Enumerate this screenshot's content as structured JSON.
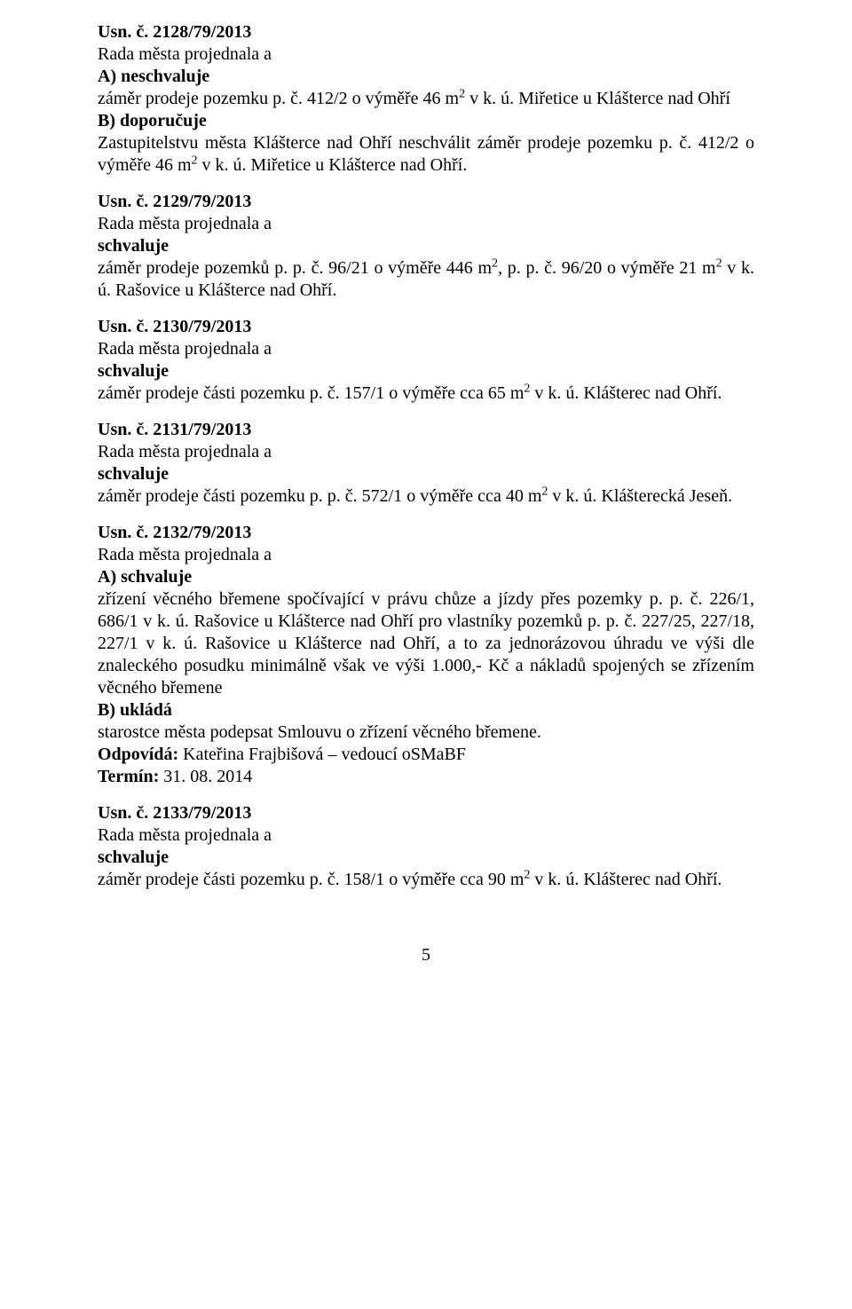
{
  "colors": {
    "text": "#000000",
    "background": "#ffffff"
  },
  "fonts": {
    "family": "Times New Roman",
    "body_size_pt": 15,
    "heading_weight": "bold"
  },
  "page_number": "5",
  "entries": [
    {
      "heading": "Usn. č. 2128/79/2013",
      "lines": [
        {
          "text": "Rada města projednala a"
        },
        {
          "text": "A) neschvaluje",
          "bold": true
        },
        {
          "html": "záměr prodeje pozemku p. č. 412/2 o výměře 46 m<sup>2</sup> v k. ú. Miřetice u Klášterce nad Ohří"
        },
        {
          "text": "B) doporučuje",
          "bold": true
        },
        {
          "html": "Zastupitelstvu města Klášterce nad Ohří neschválit záměr prodeje pozemku p. č. 412/2 o výměře 46 m<sup>2</sup> v k. ú. Miřetice u Klášterce nad Ohří.",
          "justify": true
        }
      ]
    },
    {
      "heading": "Usn. č. 2129/79/2013",
      "lines": [
        {
          "text": "Rada města projednala a"
        },
        {
          "text": "schvaluje",
          "bold": true
        },
        {
          "html": "záměr prodeje pozemků p. p. č. 96/21 o výměře 446 m<sup>2</sup>, p. p. č. 96/20 o výměře 21 m<sup>2</sup> v k. ú. Rašovice u Klášterce nad Ohří.",
          "justify": true
        }
      ]
    },
    {
      "heading": "Usn. č. 2130/79/2013",
      "lines": [
        {
          "text": "Rada města projednala a"
        },
        {
          "text": "schvaluje",
          "bold": true
        },
        {
          "html": "záměr prodeje části pozemku p. č. 157/1 o výměře cca 65 m<sup>2</sup> v k. ú. Klášterec nad Ohří."
        }
      ]
    },
    {
      "heading": "Usn. č. 2131/79/2013",
      "lines": [
        {
          "text": "Rada města projednala a"
        },
        {
          "text": "schvaluje",
          "bold": true
        },
        {
          "html": "záměr prodeje části pozemku p. p. č. 572/1 o výměře cca 40 m<sup>2</sup> v k. ú. Klášterecká Jeseň."
        }
      ]
    },
    {
      "heading": "Usn. č. 2132/79/2013",
      "lines": [
        {
          "text": "Rada města projednala a"
        },
        {
          "text": "A) schvaluje",
          "bold": true
        },
        {
          "html": "zřízení věcného břemene spočívající v právu chůze a jízdy přes pozemky p. p. č. 226/1, 686/1 v k. ú. Rašovice u Klášterce nad Ohří pro vlastníky pozemků p. p. č. 227/25, 227/18, 227/1 v k. ú. Rašovice u Klášterce nad Ohří, a to za jednorázovou úhradu ve výši dle znaleckého posudku minimálně však ve výši 1.000,- Kč a nákladů spojených se zřízením věcného břemene",
          "justify": true
        },
        {
          "text": "B) ukládá",
          "bold": true
        },
        {
          "text": "starostce města podepsat Smlouvu o zřízení věcného břemene."
        },
        {
          "html": "<span class=\"bold\">Odpovídá:</span> Kateřina Frajbišová – vedoucí oSMaBF"
        },
        {
          "html": "<span class=\"bold\">Termín:</span> 31. 08. 2014"
        }
      ]
    },
    {
      "heading": "Usn. č. 2133/79/2013",
      "lines": [
        {
          "text": "Rada města projednala a"
        },
        {
          "text": "schvaluje",
          "bold": true
        },
        {
          "html": "záměr prodeje části pozemku p. č. 158/1 o výměře cca 90 m<sup>2</sup> v k. ú. Klášterec nad Ohří."
        }
      ]
    }
  ]
}
